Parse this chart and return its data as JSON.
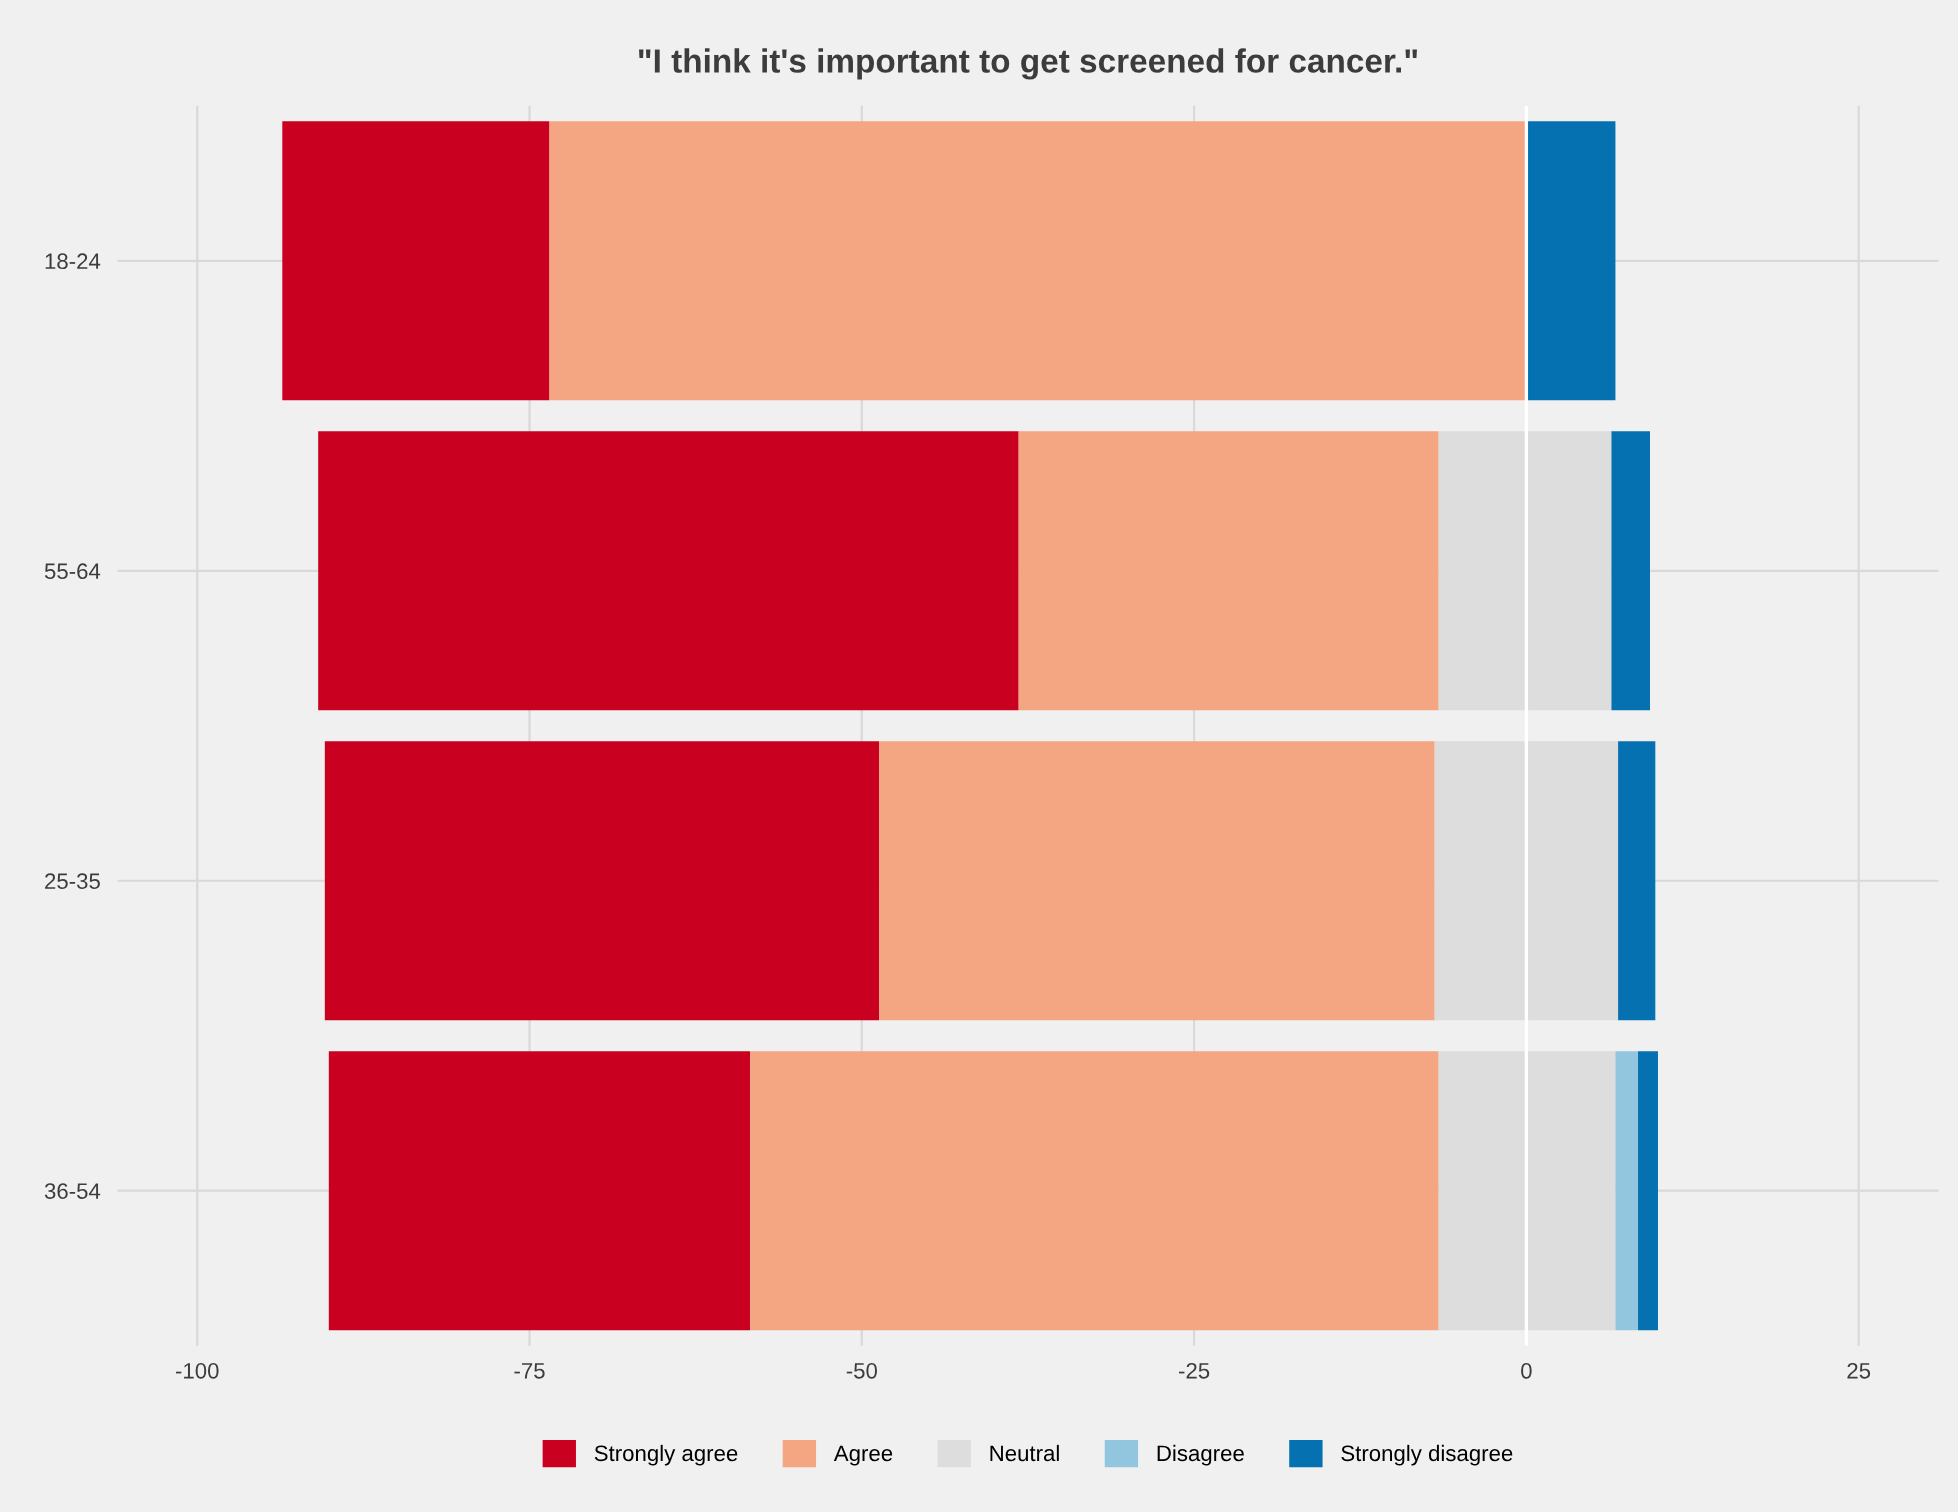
{
  "chart_data": {
    "type": "bar",
    "orientation": "horizontal",
    "title": "\"I think it's important to get screened for cancer.\"",
    "categories": [
      "18-24",
      "55-64",
      "25-35",
      "36-54"
    ],
    "series": [
      {
        "name": "Strongly agree",
        "color": "#ca0020",
        "base": [
          -93.6,
          -90.9,
          -90.4,
          -90.1
        ],
        "values": [
          20.1,
          52.7,
          41.7,
          31.7
        ]
      },
      {
        "name": "Agree",
        "color": "#f4a582",
        "base": [
          -73.5,
          -38.2,
          -48.7,
          -58.4
        ],
        "values": [
          73.5,
          31.6,
          41.8,
          51.8
        ]
      },
      {
        "name": "Neutral",
        "color": "#dddddd",
        "base": [
          null,
          -6.6,
          -6.9,
          -6.6
        ],
        "values": [
          null,
          13.0,
          13.8,
          13.3
        ]
      },
      {
        "name": "Disagree",
        "color": "#92c5de",
        "base": [
          null,
          null,
          null,
          6.7
        ],
        "values": [
          null,
          null,
          null,
          1.7
        ]
      },
      {
        "name": "Strongly disagree",
        "color": "#0571b0",
        "base": [
          0,
          6.4,
          6.9,
          8.4
        ],
        "values": [
          6.7,
          2.9,
          2.8,
          1.5
        ]
      }
    ],
    "xlim": [
      -106,
      31
    ],
    "xticks": [
      -100,
      -75,
      -50,
      -25,
      0,
      25
    ],
    "ref_lines": [
      {
        "axis": "x",
        "value": 0,
        "color": "#ffffff"
      }
    ],
    "grid": true,
    "legend": "bottom"
  }
}
